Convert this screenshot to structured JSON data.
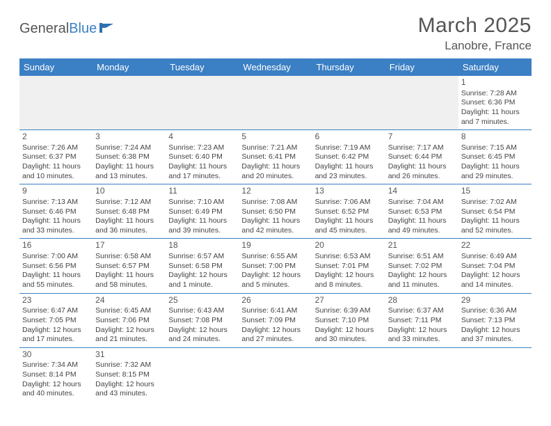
{
  "logo": {
    "text_general": "General",
    "text_blue": "Blue",
    "icon_color": "#2f6fb0"
  },
  "title": "March 2025",
  "location": "Lanobre, France",
  "header_bg": "#3b7fc4",
  "day_headers": [
    "Sunday",
    "Monday",
    "Tuesday",
    "Wednesday",
    "Thursday",
    "Friday",
    "Saturday"
  ],
  "weeks": [
    [
      null,
      null,
      null,
      null,
      null,
      null,
      {
        "n": "1",
        "sr": "Sunrise: 7:28 AM",
        "ss": "Sunset: 6:36 PM",
        "dl": "Daylight: 11 hours and 7 minutes."
      }
    ],
    [
      {
        "n": "2",
        "sr": "Sunrise: 7:26 AM",
        "ss": "Sunset: 6:37 PM",
        "dl": "Daylight: 11 hours and 10 minutes."
      },
      {
        "n": "3",
        "sr": "Sunrise: 7:24 AM",
        "ss": "Sunset: 6:38 PM",
        "dl": "Daylight: 11 hours and 13 minutes."
      },
      {
        "n": "4",
        "sr": "Sunrise: 7:23 AM",
        "ss": "Sunset: 6:40 PM",
        "dl": "Daylight: 11 hours and 17 minutes."
      },
      {
        "n": "5",
        "sr": "Sunrise: 7:21 AM",
        "ss": "Sunset: 6:41 PM",
        "dl": "Daylight: 11 hours and 20 minutes."
      },
      {
        "n": "6",
        "sr": "Sunrise: 7:19 AM",
        "ss": "Sunset: 6:42 PM",
        "dl": "Daylight: 11 hours and 23 minutes."
      },
      {
        "n": "7",
        "sr": "Sunrise: 7:17 AM",
        "ss": "Sunset: 6:44 PM",
        "dl": "Daylight: 11 hours and 26 minutes."
      },
      {
        "n": "8",
        "sr": "Sunrise: 7:15 AM",
        "ss": "Sunset: 6:45 PM",
        "dl": "Daylight: 11 hours and 29 minutes."
      }
    ],
    [
      {
        "n": "9",
        "sr": "Sunrise: 7:13 AM",
        "ss": "Sunset: 6:46 PM",
        "dl": "Daylight: 11 hours and 33 minutes."
      },
      {
        "n": "10",
        "sr": "Sunrise: 7:12 AM",
        "ss": "Sunset: 6:48 PM",
        "dl": "Daylight: 11 hours and 36 minutes."
      },
      {
        "n": "11",
        "sr": "Sunrise: 7:10 AM",
        "ss": "Sunset: 6:49 PM",
        "dl": "Daylight: 11 hours and 39 minutes."
      },
      {
        "n": "12",
        "sr": "Sunrise: 7:08 AM",
        "ss": "Sunset: 6:50 PM",
        "dl": "Daylight: 11 hours and 42 minutes."
      },
      {
        "n": "13",
        "sr": "Sunrise: 7:06 AM",
        "ss": "Sunset: 6:52 PM",
        "dl": "Daylight: 11 hours and 45 minutes."
      },
      {
        "n": "14",
        "sr": "Sunrise: 7:04 AM",
        "ss": "Sunset: 6:53 PM",
        "dl": "Daylight: 11 hours and 49 minutes."
      },
      {
        "n": "15",
        "sr": "Sunrise: 7:02 AM",
        "ss": "Sunset: 6:54 PM",
        "dl": "Daylight: 11 hours and 52 minutes."
      }
    ],
    [
      {
        "n": "16",
        "sr": "Sunrise: 7:00 AM",
        "ss": "Sunset: 6:56 PM",
        "dl": "Daylight: 11 hours and 55 minutes."
      },
      {
        "n": "17",
        "sr": "Sunrise: 6:58 AM",
        "ss": "Sunset: 6:57 PM",
        "dl": "Daylight: 11 hours and 58 minutes."
      },
      {
        "n": "18",
        "sr": "Sunrise: 6:57 AM",
        "ss": "Sunset: 6:58 PM",
        "dl": "Daylight: 12 hours and 1 minute."
      },
      {
        "n": "19",
        "sr": "Sunrise: 6:55 AM",
        "ss": "Sunset: 7:00 PM",
        "dl": "Daylight: 12 hours and 5 minutes."
      },
      {
        "n": "20",
        "sr": "Sunrise: 6:53 AM",
        "ss": "Sunset: 7:01 PM",
        "dl": "Daylight: 12 hours and 8 minutes."
      },
      {
        "n": "21",
        "sr": "Sunrise: 6:51 AM",
        "ss": "Sunset: 7:02 PM",
        "dl": "Daylight: 12 hours and 11 minutes."
      },
      {
        "n": "22",
        "sr": "Sunrise: 6:49 AM",
        "ss": "Sunset: 7:04 PM",
        "dl": "Daylight: 12 hours and 14 minutes."
      }
    ],
    [
      {
        "n": "23",
        "sr": "Sunrise: 6:47 AM",
        "ss": "Sunset: 7:05 PM",
        "dl": "Daylight: 12 hours and 17 minutes."
      },
      {
        "n": "24",
        "sr": "Sunrise: 6:45 AM",
        "ss": "Sunset: 7:06 PM",
        "dl": "Daylight: 12 hours and 21 minutes."
      },
      {
        "n": "25",
        "sr": "Sunrise: 6:43 AM",
        "ss": "Sunset: 7:08 PM",
        "dl": "Daylight: 12 hours and 24 minutes."
      },
      {
        "n": "26",
        "sr": "Sunrise: 6:41 AM",
        "ss": "Sunset: 7:09 PM",
        "dl": "Daylight: 12 hours and 27 minutes."
      },
      {
        "n": "27",
        "sr": "Sunrise: 6:39 AM",
        "ss": "Sunset: 7:10 PM",
        "dl": "Daylight: 12 hours and 30 minutes."
      },
      {
        "n": "28",
        "sr": "Sunrise: 6:37 AM",
        "ss": "Sunset: 7:11 PM",
        "dl": "Daylight: 12 hours and 33 minutes."
      },
      {
        "n": "29",
        "sr": "Sunrise: 6:36 AM",
        "ss": "Sunset: 7:13 PM",
        "dl": "Daylight: 12 hours and 37 minutes."
      }
    ],
    [
      {
        "n": "30",
        "sr": "Sunrise: 7:34 AM",
        "ss": "Sunset: 8:14 PM",
        "dl": "Daylight: 12 hours and 40 minutes."
      },
      {
        "n": "31",
        "sr": "Sunrise: 7:32 AM",
        "ss": "Sunset: 8:15 PM",
        "dl": "Daylight: 12 hours and 43 minutes."
      },
      null,
      null,
      null,
      null,
      null
    ]
  ]
}
